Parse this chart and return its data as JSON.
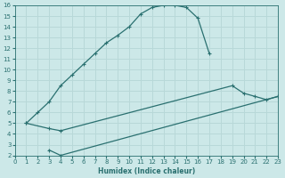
{
  "xlabel": "Humidex (Indice chaleur)",
  "bg_color": "#cce8e8",
  "grid_color": "#b8d8d8",
  "line_color": "#2a7070",
  "xlim": [
    0,
    23
  ],
  "ylim": [
    2,
    16
  ],
  "xticks": [
    0,
    1,
    2,
    3,
    4,
    5,
    6,
    7,
    8,
    9,
    10,
    11,
    12,
    13,
    14,
    15,
    16,
    17,
    18,
    19,
    20,
    21,
    22,
    23
  ],
  "yticks": [
    2,
    3,
    4,
    5,
    6,
    7,
    8,
    9,
    10,
    11,
    12,
    13,
    14,
    15,
    16
  ],
  "line1_x": [
    1,
    2,
    3,
    4,
    5,
    6,
    7,
    8,
    9,
    10,
    11,
    12,
    13,
    14,
    15,
    16,
    17
  ],
  "line1_y": [
    5.0,
    6.0,
    7.0,
    8.5,
    9.5,
    10.5,
    11.5,
    12.5,
    13.2,
    14.0,
    15.2,
    15.8,
    16.0,
    16.0,
    15.8,
    14.8,
    11.5
  ],
  "line2_x": [
    1,
    3,
    4,
    19,
    20,
    21,
    22,
    23
  ],
  "line2_y": [
    5.0,
    4.5,
    4.3,
    8.5,
    7.8,
    7.5,
    7.2,
    7.5
  ],
  "line3_x": [
    3,
    4,
    23
  ],
  "line3_y": [
    2.5,
    2.0,
    7.5
  ]
}
